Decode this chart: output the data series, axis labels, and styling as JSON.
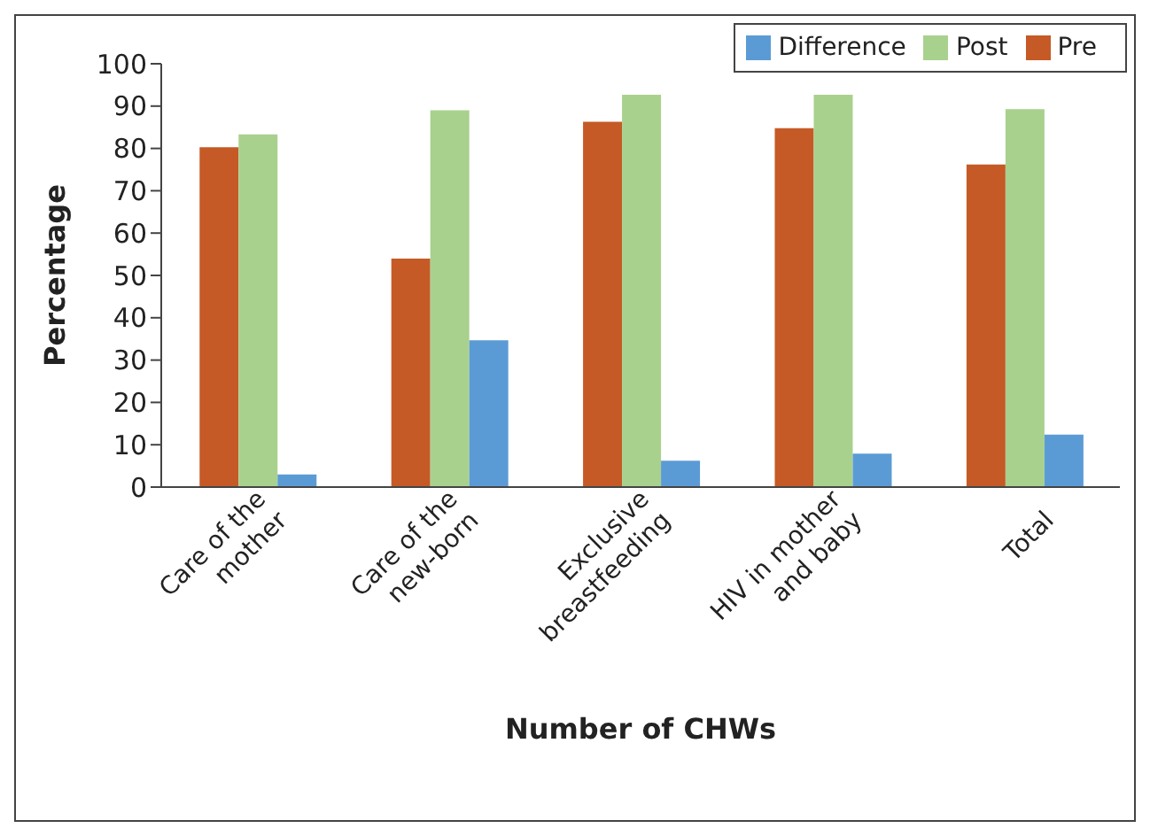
{
  "chart_data": {
    "type": "bar",
    "xlabel": "Number of CHWs",
    "ylabel": "Percentage",
    "categories": [
      "Care of the mother",
      "Care of the new-born",
      "Exclusive breastfeeding",
      "HIV in mother and baby",
      "Total"
    ],
    "series": [
      {
        "name": "Pre",
        "color": "#c55a26",
        "values": [
          80.3,
          54,
          86.3,
          84.8,
          76.2
        ]
      },
      {
        "name": "Post",
        "color": "#a9d18e",
        "values": [
          83.3,
          89,
          92.7,
          92.7,
          89.3
        ]
      },
      {
        "name": "Difference",
        "color": "#5b9bd5",
        "values": [
          3,
          34.7,
          6.2,
          7.9,
          12.4
        ]
      }
    ],
    "ylim": [
      0,
      100
    ],
    "yticks": [
      0,
      10,
      20,
      30,
      40,
      50,
      60,
      70,
      80,
      90,
      100
    ],
    "grid": false,
    "legend": "top right"
  }
}
